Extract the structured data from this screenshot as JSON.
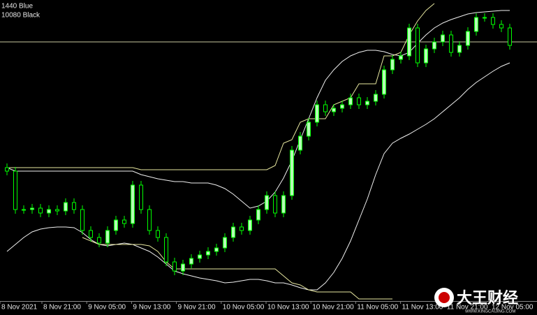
{
  "chart_data": {
    "type": "candlestick",
    "legend_lines": [
      "1440 Blue",
      "10080 Black"
    ],
    "x_labels": [
      "8 Nov 2021",
      "8 Nov 21:00",
      "9 Nov 05:00",
      "9 Nov 13:00",
      "9 Nov 21:00",
      "10 Nov 05:00",
      "10 Nov 13:00",
      "10 Nov 21:00",
      "11 Nov 05:00",
      "11 Nov 13:00",
      "11 Nov 21:00",
      "12 Nov 05:00"
    ],
    "ylim": [
      0,
      451
    ],
    "up_color": "#b4ffb4",
    "down_color": "#000000",
    "wick_color": "#00ff00",
    "open": [
      211,
      206,
      151,
      151,
      153,
      146,
      151,
      149,
      161,
      151,
      121,
      111,
      103,
      121,
      136,
      131,
      186,
      151,
      121,
      111,
      76,
      63,
      73,
      81,
      86,
      91,
      96,
      111,
      126,
      121,
      136,
      151,
      171,
      146,
      171,
      236,
      256,
      276,
      301,
      291,
      296,
      301,
      311,
      301,
      306,
      316,
      351,
      366,
      371,
      411,
      361,
      381,
      391,
      401,
      376,
      386,
      406,
      426,
      426,
      416,
      411
    ],
    "high": [
      217,
      212,
      157,
      159,
      159,
      157,
      157,
      167,
      167,
      157,
      127,
      117,
      127,
      142,
      142,
      192,
      192,
      157,
      127,
      117,
      82,
      79,
      87,
      92,
      97,
      102,
      117,
      132,
      132,
      142,
      157,
      177,
      177,
      177,
      242,
      262,
      282,
      307,
      307,
      302,
      307,
      317,
      317,
      312,
      322,
      357,
      372,
      377,
      417,
      417,
      387,
      397,
      407,
      407,
      392,
      412,
      432,
      432,
      432,
      422,
      417
    ],
    "low": [
      200,
      145,
      145,
      145,
      140,
      140,
      143,
      143,
      145,
      115,
      105,
      97,
      97,
      115,
      125,
      125,
      145,
      115,
      105,
      70,
      57,
      57,
      67,
      75,
      80,
      85,
      90,
      105,
      115,
      115,
      130,
      145,
      140,
      140,
      165,
      230,
      250,
      270,
      285,
      285,
      290,
      295,
      295,
      295,
      300,
      310,
      345,
      360,
      365,
      355,
      355,
      375,
      385,
      370,
      370,
      380,
      400,
      420,
      410,
      405,
      380
    ],
    "close": [
      206,
      151,
      151,
      153,
      146,
      151,
      149,
      161,
      151,
      121,
      111,
      103,
      121,
      136,
      131,
      186,
      151,
      121,
      111,
      76,
      63,
      73,
      81,
      86,
      91,
      96,
      111,
      126,
      121,
      136,
      151,
      171,
      146,
      171,
      236,
      256,
      276,
      301,
      291,
      296,
      301,
      311,
      301,
      306,
      316,
      351,
      366,
      371,
      411,
      361,
      381,
      391,
      401,
      376,
      386,
      406,
      426,
      426,
      416,
      411,
      386
    ],
    "lines": [
      {
        "color": "#f0f0f0",
        "values": [
          211,
          206,
          206,
          206,
          206,
          206,
          206,
          206,
          206,
          206,
          206,
          206,
          206,
          206,
          206,
          206,
          201,
          198,
          195,
          193,
          191,
          191,
          189,
          189,
          189,
          186,
          181,
          173,
          163,
          153,
          156,
          163,
          176,
          196,
          221,
          251,
          281,
          311,
          336,
          351,
          363,
          371,
          376,
          379,
          379,
          377,
          373,
          371,
          376,
          389,
          401,
          411,
          418,
          423,
          427,
          431,
          433,
          434,
          435,
          436,
          436
        ]
      },
      {
        "color": "#f0f0f0",
        "values": [
          91,
          101,
          111,
          119,
          123,
          125,
          126,
          126,
          125,
          118,
          108,
          101,
          99,
          101,
          103,
          101,
          96,
          91,
          83,
          73,
          63,
          59,
          56,
          53,
          51,
          49,
          46,
          47,
          49,
          51,
          51,
          49,
          46,
          46,
          43,
          39,
          36,
          36,
          46,
          61,
          81,
          106,
          136,
          166,
          201,
          231,
          246,
          253,
          259,
          266,
          273,
          281,
          291,
          301,
          311,
          323,
          333,
          341,
          349,
          356,
          361
        ]
      },
      {
        "color": "#e8e8a0",
        "values": [
          211,
          211,
          211,
          211,
          211,
          211,
          211,
          211,
          211,
          211,
          211,
          211,
          211,
          211,
          211,
          211,
          208,
          208,
          208,
          208,
          208,
          208,
          208,
          208,
          208,
          208,
          208,
          208,
          208,
          208,
          208,
          208,
          214,
          246,
          251,
          276,
          281,
          281,
          281,
          301,
          306,
          311,
          331,
          331,
          331,
          371,
          371,
          376,
          401,
          421,
          436,
          446,
          null,
          null,
          null,
          null,
          null,
          null,
          null,
          null,
          null
        ]
      },
      {
        "color": "#e8e8a0",
        "values": [
          null,
          null,
          null,
          null,
          null,
          null,
          null,
          null,
          null,
          111,
          106,
          101,
          101,
          101,
          101,
          101,
          101,
          99,
          91,
          76,
          66,
          66,
          66,
          66,
          66,
          66,
          66,
          66,
          66,
          66,
          66,
          66,
          66,
          56,
          46,
          43,
          36,
          33,
          33,
          33,
          33,
          33,
          23,
          23,
          23,
          23,
          23,
          null,
          null,
          null,
          null,
          null,
          null,
          null,
          null,
          null,
          null,
          null,
          null,
          null,
          null
        ]
      }
    ],
    "level": 391,
    "level_color": "#c8c8a0",
    "watermark": "大王财经",
    "watermark_url": "WWW.KINGCAIJING.COM"
  }
}
